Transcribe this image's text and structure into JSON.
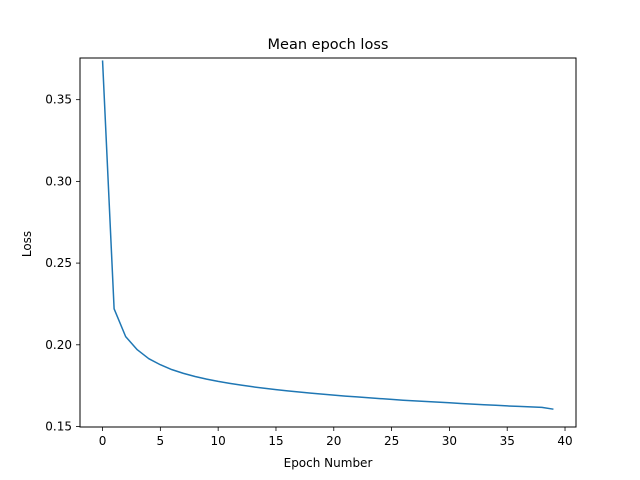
{
  "chart_data": {
    "type": "line",
    "title": "Mean epoch loss",
    "xlabel": "Epoch Number",
    "ylabel": "Loss",
    "xlim": [
      -1.95,
      40.95
    ],
    "ylim": [
      0.1497,
      0.3755
    ],
    "xticks": [
      0,
      5,
      10,
      15,
      20,
      25,
      30,
      35,
      40
    ],
    "yticks": [
      0.15,
      0.2,
      0.25,
      0.3,
      0.35
    ],
    "xtick_labels": [
      "0",
      "5",
      "10",
      "15",
      "20",
      "25",
      "30",
      "35",
      "40"
    ],
    "ytick_labels": [
      "0.15",
      "0.20",
      "0.25",
      "0.30",
      "0.35"
    ],
    "grid": false,
    "legend": "none",
    "colors": {
      "line": "#1f77b4",
      "axes": "#000000",
      "background": "#ffffff"
    },
    "series": [
      {
        "x": [
          0,
          1,
          2,
          3,
          4,
          5,
          6,
          7,
          8,
          9,
          10,
          11,
          12,
          13,
          14,
          15,
          16,
          17,
          18,
          19,
          20,
          21,
          22,
          23,
          24,
          25,
          26,
          27,
          28,
          29,
          30,
          31,
          32,
          33,
          34,
          35,
          36,
          37,
          38,
          39
        ],
        "values": [
          0.374,
          0.222,
          0.205,
          0.197,
          0.1915,
          0.1878,
          0.1848,
          0.1825,
          0.1806,
          0.179,
          0.1776,
          0.1764,
          0.1753,
          0.1743,
          0.1734,
          0.1726,
          0.1718,
          0.1711,
          0.1704,
          0.1698,
          0.1692,
          0.1686,
          0.1681,
          0.1676,
          0.1671,
          0.1666,
          0.1661,
          0.1657,
          0.1653,
          0.1649,
          0.1645,
          0.1641,
          0.1637,
          0.1633,
          0.163,
          0.1626,
          0.1623,
          0.162,
          0.1617,
          0.1606
        ]
      }
    ]
  }
}
